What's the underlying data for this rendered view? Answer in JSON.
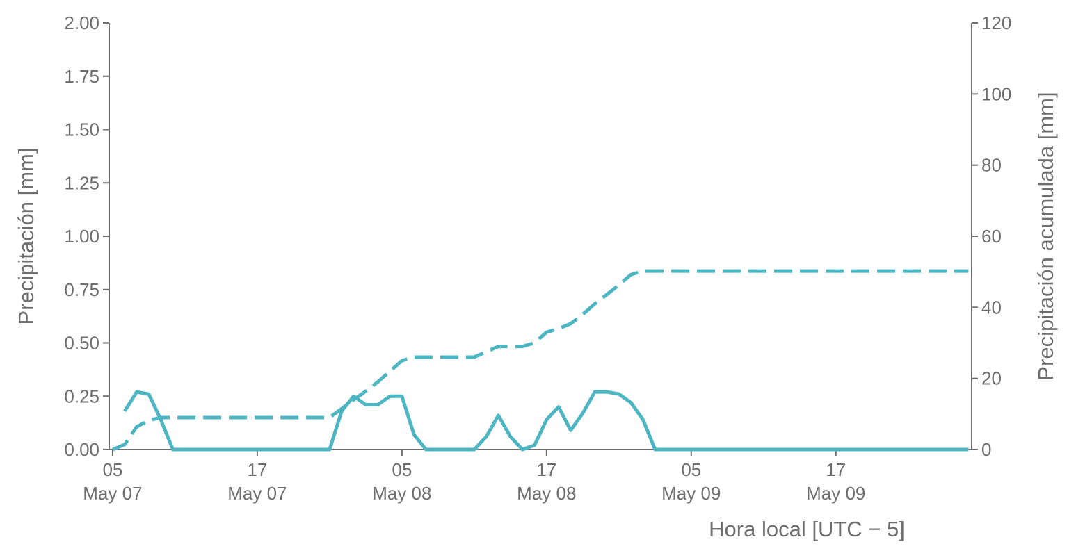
{
  "chart_data": {
    "type": "line",
    "x_label": "Hora local [UTC − 5]",
    "y_label": "Precipitación [mm]",
    "y2_label": "Precipitación acumulada [mm]",
    "x": [
      "May 07 05:00",
      "May 07 06:00",
      "May 07 07:00",
      "May 07 08:00",
      "May 07 09:00",
      "May 07 10:00",
      "May 07 11:00",
      "May 07 12:00",
      "May 07 13:00",
      "May 07 14:00",
      "May 07 15:00",
      "May 07 16:00",
      "May 07 17:00",
      "May 07 18:00",
      "May 07 19:00",
      "May 07 20:00",
      "May 07 21:00",
      "May 07 22:00",
      "May 07 23:00",
      "May 08 00:00",
      "May 08 01:00",
      "May 08 02:00",
      "May 08 03:00",
      "May 08 04:00",
      "May 08 05:00",
      "May 08 06:00",
      "May 08 07:00",
      "May 08 08:00",
      "May 08 09:00",
      "May 08 10:00",
      "May 08 11:00",
      "May 08 12:00",
      "May 08 13:00",
      "May 08 14:00",
      "May 08 15:00",
      "May 08 16:00",
      "May 08 17:00",
      "May 08 18:00",
      "May 08 19:00",
      "May 08 20:00",
      "May 08 21:00",
      "May 08 22:00",
      "May 08 23:00",
      "May 09 00:00",
      "May 09 01:00",
      "May 09 02:00",
      "May 09 03:00",
      "May 09 04:00",
      "May 09 05:00",
      "May 09 06:00",
      "May 09 07:00",
      "May 09 08:00",
      "May 09 09:00",
      "May 09 10:00",
      "May 09 11:00",
      "May 09 12:00",
      "May 09 13:00",
      "May 09 14:00",
      "May 09 15:00",
      "May 09 16:00",
      "May 09 17:00",
      "May 09 18:00",
      "May 09 19:00",
      "May 09 20:00",
      "May 09 21:00",
      "May 09 22:00",
      "May 09 23:00",
      "May 10 00:00",
      "May 10 01:00",
      "May 10 02:00",
      "May 10 03:00",
      "May 10 04:00"
    ],
    "series": [
      {
        "color": "#4eb6c3",
        "linestyle": "solid",
        "axis": "y",
        "values": [
          null,
          0.18,
          0.27,
          0.26,
          0.14,
          0,
          0,
          0,
          0,
          0,
          0,
          0,
          0,
          0,
          0,
          0,
          0,
          0,
          0,
          0.18,
          0.25,
          0.21,
          0.21,
          0.25,
          0.25,
          0.07,
          0,
          0,
          0,
          0,
          0,
          0.06,
          0.16,
          0.06,
          0,
          0.02,
          0.14,
          0.2,
          0.09,
          0.17,
          0.27,
          0.27,
          0.26,
          0.22,
          0.14,
          0,
          0,
          0,
          0,
          0,
          0,
          0,
          0,
          0,
          0,
          0,
          0,
          0,
          0,
          0,
          0,
          0,
          0,
          0,
          0,
          0,
          0,
          0,
          0,
          0,
          0,
          0
        ]
      },
      {
        "color": "#4eb6c3",
        "linestyle": "dashed",
        "axis": "y2",
        "values": [
          0,
          1.4,
          6.4,
          8.2,
          9,
          9,
          9,
          9,
          9,
          9,
          9,
          9,
          9,
          9,
          9,
          9,
          9,
          9,
          9,
          11.5,
          14,
          16.4,
          19,
          22,
          25,
          26,
          26,
          26,
          26,
          26,
          26,
          27.5,
          29,
          29,
          29,
          30,
          33,
          34,
          35.4,
          38,
          41,
          43.6,
          46.3,
          49.2,
          50.2,
          50.2,
          50.2,
          50.2,
          50.2,
          50.2,
          50.2,
          50.2,
          50.2,
          50.2,
          50.2,
          50.2,
          50.2,
          50.2,
          50.2,
          50.2,
          50.2,
          50.2,
          50.2,
          50.2,
          50.2,
          50.2,
          50.2,
          50.2,
          50.2,
          50.2,
          50.2,
          50.2
        ]
      }
    ],
    "xlim": [
      "May 07 04:43",
      "May 10 04:16"
    ],
    "xticks": [
      {
        "value": "May 07 05:00",
        "label": "05\nMay 07"
      },
      {
        "value": "May 07 17:00",
        "label": "17\nMay 07"
      },
      {
        "value": "May 08 05:00",
        "label": "05\nMay 08"
      },
      {
        "value": "May 08 17:00",
        "label": "17\nMay 08"
      },
      {
        "value": "May 09 05:00",
        "label": "05\nMay 09"
      },
      {
        "value": "May 09 17:00",
        "label": "17\nMay 09"
      }
    ],
    "ylim": [
      0,
      2
    ],
    "yticks": [
      {
        "value": 0,
        "label": "0.00"
      },
      {
        "value": 0.25,
        "label": "0.25"
      },
      {
        "value": 0.5,
        "label": "0.50"
      },
      {
        "value": 0.75,
        "label": "0.75"
      },
      {
        "value": 1,
        "label": "1.00"
      },
      {
        "value": 1.25,
        "label": "1.25"
      },
      {
        "value": 1.5,
        "label": "1.50"
      },
      {
        "value": 1.75,
        "label": "1.75"
      },
      {
        "value": 2,
        "label": "2.00"
      }
    ],
    "y2lim": [
      0,
      120
    ],
    "y2ticks": [
      0,
      20,
      40,
      60,
      80,
      100,
      120
    ],
    "grid": false
  }
}
